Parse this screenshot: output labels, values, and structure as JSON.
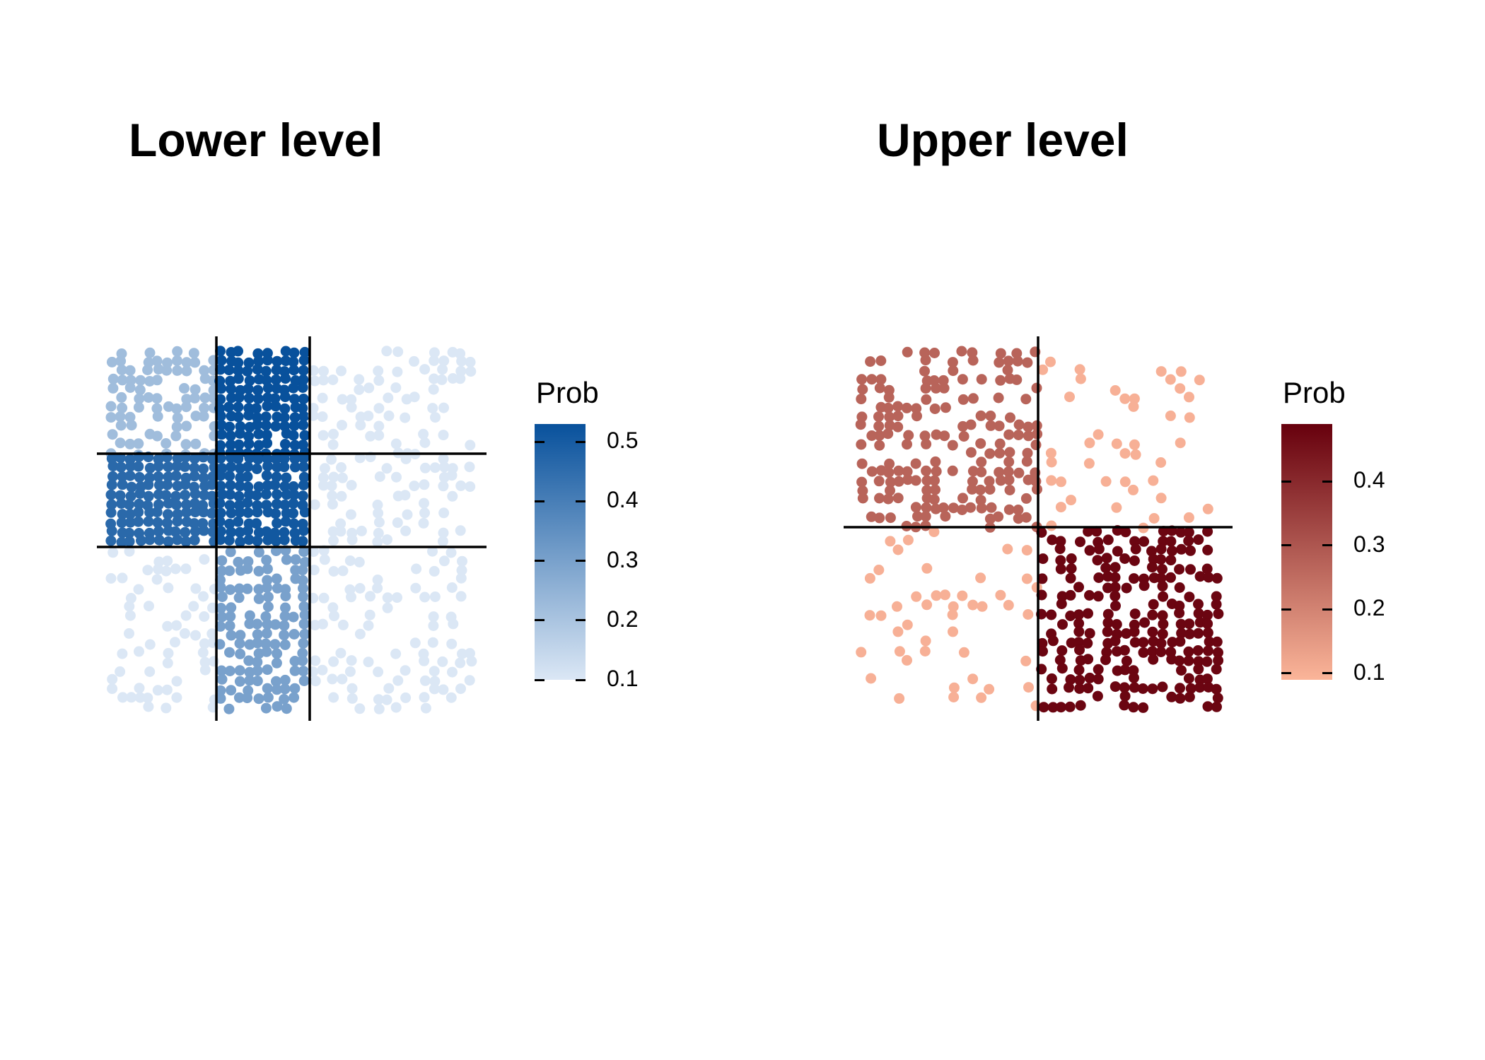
{
  "chart_data": [
    {
      "type": "heatmap",
      "title": "Lower level",
      "legend": {
        "title": "Prob",
        "placement": "right",
        "low_color": "#dbe7f5",
        "high_color": "#08519c",
        "range": [
          0.1,
          0.53
        ],
        "ticks": [
          "0.5",
          "0.4",
          "0.3",
          "0.2",
          "0.1"
        ]
      },
      "blocks_rows": [
        "1",
        "2",
        "3"
      ],
      "blocks_cols": [
        "1",
        "2",
        "3"
      ],
      "values": [
        [
          0.22,
          0.53,
          0.1
        ],
        [
          0.46,
          0.51,
          0.1
        ],
        [
          0.1,
          0.3,
          0.1
        ]
      ],
      "density": [
        [
          0.55,
          0.97,
          0.28
        ],
        [
          0.97,
          0.97,
          0.3
        ],
        [
          0.3,
          0.7,
          0.27
        ]
      ],
      "grid": false
    },
    {
      "type": "heatmap",
      "title": "Upper level",
      "legend": {
        "title": "Prob",
        "placement": "right",
        "low_color": "#fbb599",
        "high_color": "#67000d",
        "range": [
          0.09,
          0.49
        ],
        "ticks": [
          "0.4",
          "0.3",
          "0.2",
          "0.1"
        ]
      },
      "blocks_rows": [
        "1",
        "2"
      ],
      "blocks_cols": [
        "1",
        "2"
      ],
      "values": [
        [
          0.27,
          0.1
        ],
        [
          0.1,
          0.48
        ]
      ],
      "density": [
        [
          0.45,
          0.09
        ],
        [
          0.09,
          0.5
        ]
      ],
      "grid": false
    }
  ]
}
